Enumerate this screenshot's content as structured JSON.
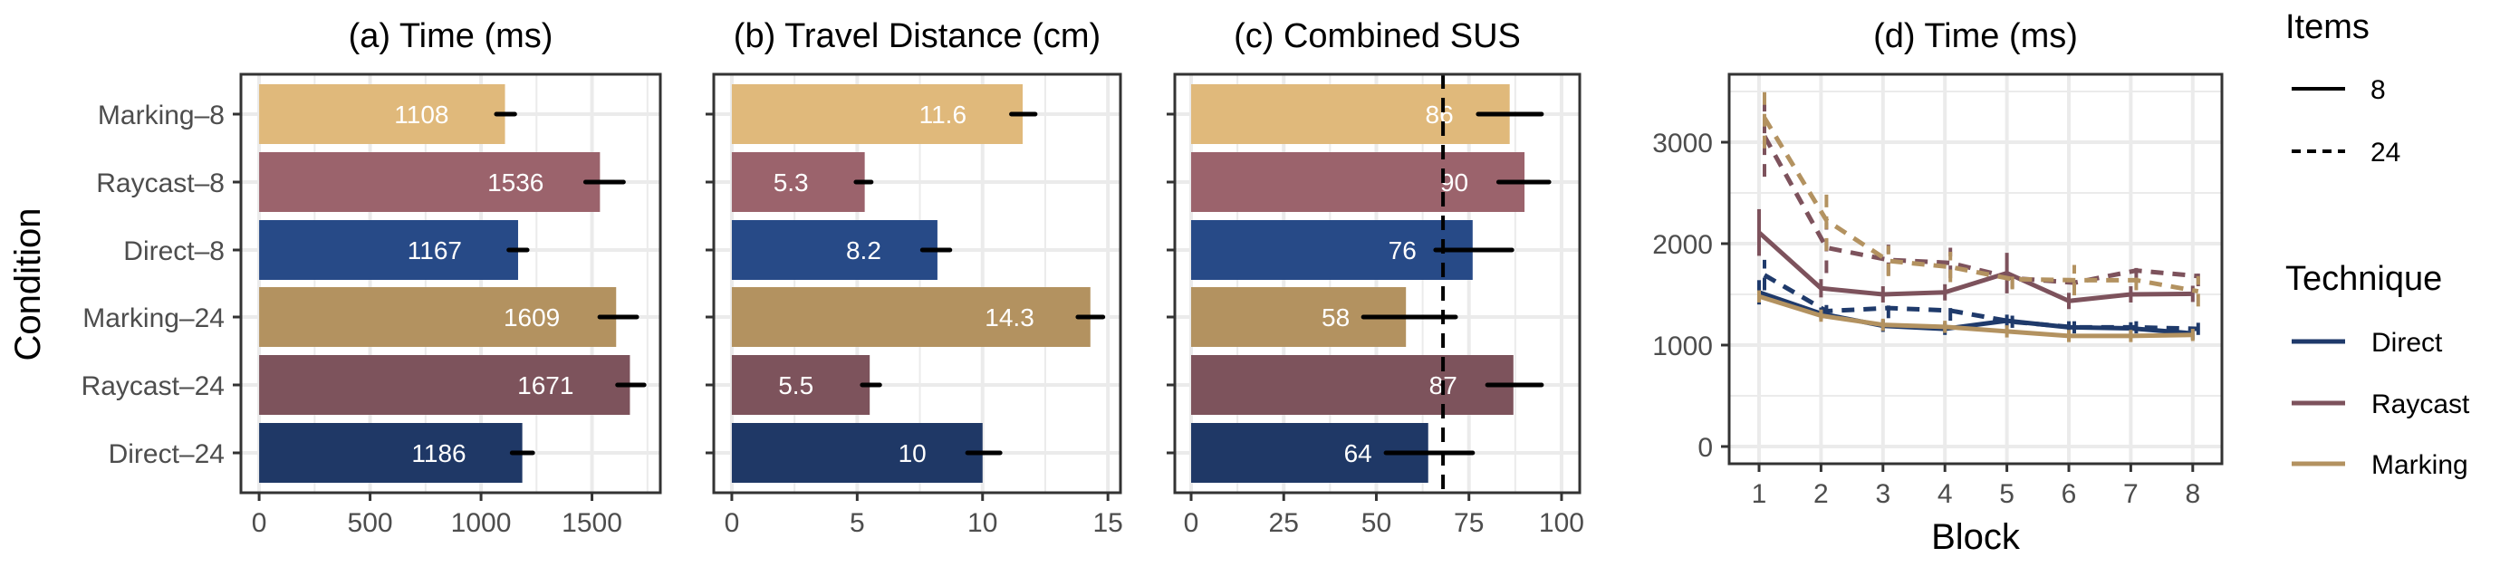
{
  "chart_data": [
    {
      "type": "bar",
      "orientation": "horizontal",
      "title": "(a) Time (ms)",
      "ylabel": "Condition",
      "categories": [
        "Marking–8",
        "Raycast–8",
        "Direct–8",
        "Marking–24",
        "Raycast–24",
        "Direct–24"
      ],
      "values": [
        1108,
        1536,
        1167,
        1609,
        1671,
        1186
      ],
      "value_labels": [
        "1108",
        "1536",
        "1167",
        "1609",
        "1671",
        "1186"
      ],
      "error_low": [
        1069,
        1471,
        1125,
        1535,
        1615,
        1140
      ],
      "error_high": [
        1152,
        1642,
        1208,
        1702,
        1735,
        1233
      ],
      "xticks": [
        "0",
        "500",
        "1000",
        "1500"
      ],
      "xlim": [
        -82,
        1808
      ],
      "colors": [
        "#e0b97b",
        "#9b636c",
        "#274a87",
        "#b39260",
        "#7d535c",
        "#1f3866"
      ],
      "grid": true
    },
    {
      "type": "bar",
      "orientation": "horizontal",
      "title": "(b) Travel Distance (cm)",
      "categories": [
        "Marking–8",
        "Raycast–8",
        "Direct–8",
        "Marking–24",
        "Raycast–24",
        "Direct–24"
      ],
      "values": [
        11.6,
        5.3,
        8.2,
        14.3,
        5.5,
        10
      ],
      "value_labels": [
        "11.6",
        "5.3",
        "8.2",
        "14.3",
        "5.5",
        "10"
      ],
      "error_low": [
        11.15,
        4.95,
        7.6,
        13.8,
        5.2,
        9.4
      ],
      "error_high": [
        12.1,
        5.56,
        8.7,
        14.8,
        5.9,
        10.7
      ],
      "xticks": [
        "0",
        "5",
        "10",
        "15"
      ],
      "xlim": [
        -0.72,
        15.5
      ],
      "colors": [
        "#e0b97b",
        "#9b636c",
        "#274a87",
        "#b39260",
        "#7d535c",
        "#1f3866"
      ],
      "grid": true
    },
    {
      "type": "bar",
      "orientation": "horizontal",
      "title": "(c) Combined SUS",
      "categories": [
        "Marking–8",
        "Raycast–8",
        "Direct–8",
        "Marking–24",
        "Raycast–24",
        "Direct–24"
      ],
      "values": [
        86,
        90,
        76,
        58,
        87,
        64
      ],
      "value_labels": [
        "86",
        "90",
        "76",
        "58",
        "87",
        "64"
      ],
      "error_low": [
        77.5,
        83,
        66,
        46.5,
        80,
        52.6
      ],
      "error_high": [
        94.6,
        96.6,
        86.6,
        71.4,
        94.6,
        76
      ],
      "reference_line": 68,
      "xticks": [
        "0",
        "25",
        "50",
        "75",
        "100"
      ],
      "xlim": [
        -4.4,
        104.9
      ],
      "colors": [
        "#e0b97b",
        "#9b636c",
        "#274a87",
        "#b39260",
        "#7d535c",
        "#1f3866"
      ],
      "grid": true
    },
    {
      "type": "line",
      "title": "(d) Time (ms)",
      "xlabel": "Block",
      "x": [
        1,
        2,
        3,
        4,
        5,
        6,
        7,
        8
      ],
      "xticks": [
        "1",
        "2",
        "3",
        "4",
        "5",
        "6",
        "7",
        "8"
      ],
      "yticks": [
        "0",
        "1000",
        "2000",
        "3000"
      ],
      "ylim": [
        -170,
        3670
      ],
      "grid": true,
      "series": [
        {
          "technique": "Direct",
          "items": "8",
          "color": "#1f3a6b",
          "dash": false,
          "values": [
            1520,
            1310,
            1190,
            1160,
            1240,
            1175,
            1165,
            1115
          ],
          "error": [
            120,
            60,
            60,
            60,
            60,
            60,
            60,
            60
          ]
        },
        {
          "technique": "Direct",
          "items": "24",
          "color": "#1f3a6b",
          "dash": true,
          "values": [
            1690,
            1335,
            1365,
            1340,
            1230,
            1175,
            1175,
            1160
          ],
          "error": [
            150,
            60,
            100,
            100,
            60,
            60,
            60,
            60
          ]
        },
        {
          "technique": "Raycast",
          "items": "8",
          "color": "#7d525c",
          "dash": false,
          "values": [
            2110,
            1560,
            1500,
            1520,
            1710,
            1435,
            1500,
            1505
          ],
          "error": [
            230,
            90,
            80,
            80,
            200,
            80,
            80,
            80
          ]
        },
        {
          "technique": "Raycast",
          "items": "24",
          "color": "#7d525c",
          "dash": true,
          "values": [
            3060,
            1960,
            1840,
            1810,
            1660,
            1615,
            1735,
            1680
          ],
          "error": [
            400,
            250,
            150,
            150,
            100,
            100,
            100,
            100
          ]
        },
        {
          "technique": "Marking",
          "items": "8",
          "color": "#b39260",
          "dash": false,
          "values": [
            1480,
            1290,
            1200,
            1180,
            1135,
            1090,
            1090,
            1100
          ],
          "error": [
            60,
            60,
            60,
            60,
            60,
            60,
            60,
            60
          ]
        },
        {
          "technique": "Marking",
          "items": "24",
          "color": "#b39260",
          "dash": true,
          "values": [
            3240,
            2230,
            1830,
            1770,
            1650,
            1640,
            1640,
            1530
          ],
          "error": [
            300,
            300,
            150,
            150,
            100,
            150,
            100,
            150
          ]
        }
      ]
    }
  ],
  "legend": {
    "placement": "right",
    "items_title": "Items",
    "items": [
      {
        "label": "8",
        "dash": false
      },
      {
        "label": "24",
        "dash": true
      }
    ],
    "technique_title": "Technique",
    "techniques": [
      {
        "label": "Direct",
        "color": "#1f3a6b"
      },
      {
        "label": "Raycast",
        "color": "#7d525c"
      },
      {
        "label": "Marking",
        "color": "#b39260"
      }
    ]
  }
}
